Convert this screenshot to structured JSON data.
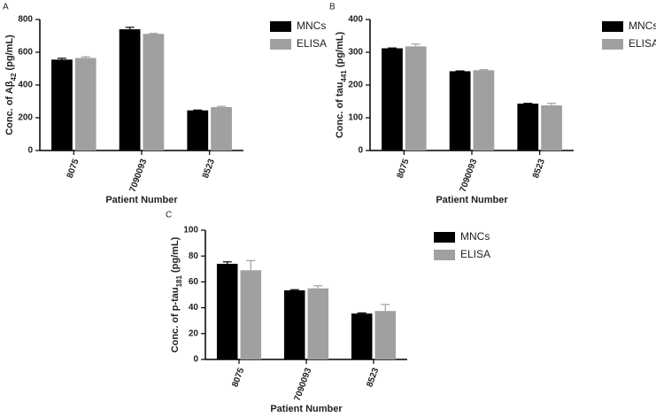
{
  "chart_data": [
    {
      "type": "bar",
      "panel": "A",
      "y_label_parts": [
        "Conc. of Aβ",
        "42",
        " (pg/mL)"
      ],
      "x_label": "Patient Number",
      "categories": [
        "8075",
        "7090093",
        "8523"
      ],
      "ylim": [
        0,
        800
      ],
      "yticks": [
        0,
        200,
        400,
        600,
        800
      ],
      "series": [
        {
          "name": "MNCs",
          "color": "#000000",
          "values": [
            555,
            740,
            245
          ],
          "errors": [
            8,
            12,
            2
          ]
        },
        {
          "name": "ELISA",
          "color": "#a0a0a0",
          "values": [
            565,
            712,
            265
          ],
          "errors": [
            7,
            3,
            5
          ]
        }
      ]
    },
    {
      "type": "bar",
      "panel": "B",
      "y_label_parts": [
        "Conc. of tau",
        "441",
        " (pg/mL)"
      ],
      "x_label": "Patient Number",
      "categories": [
        "8075",
        "7090093",
        "8523"
      ],
      "ylim": [
        0,
        400
      ],
      "yticks": [
        0,
        100,
        200,
        300,
        400
      ],
      "series": [
        {
          "name": "MNCs",
          "color": "#000000",
          "values": [
            312,
            242,
            143
          ],
          "errors": [
            1,
            1,
            1
          ]
        },
        {
          "name": "ELISA",
          "color": "#a0a0a0",
          "values": [
            318,
            245,
            138
          ],
          "errors": [
            7,
            2,
            6
          ]
        }
      ]
    },
    {
      "type": "bar",
      "panel": "C",
      "y_label_parts": [
        "Conc. of p-tau",
        "181",
        " (pg/mL)"
      ],
      "x_label": "Patient Number",
      "categories": [
        "8075",
        "7090093",
        "8523"
      ],
      "ylim": [
        0,
        100
      ],
      "yticks": [
        0,
        20,
        40,
        60,
        80,
        100
      ],
      "series": [
        {
          "name": "MNCs",
          "color": "#000000",
          "values": [
            74,
            53.5,
            35.5
          ],
          "errors": [
            1.5,
            0.5,
            0.5
          ]
        },
        {
          "name": "ELISA",
          "color": "#a0a0a0",
          "values": [
            69,
            55,
            37.5
          ],
          "errors": [
            7.5,
            2,
            5
          ]
        }
      ]
    }
  ]
}
